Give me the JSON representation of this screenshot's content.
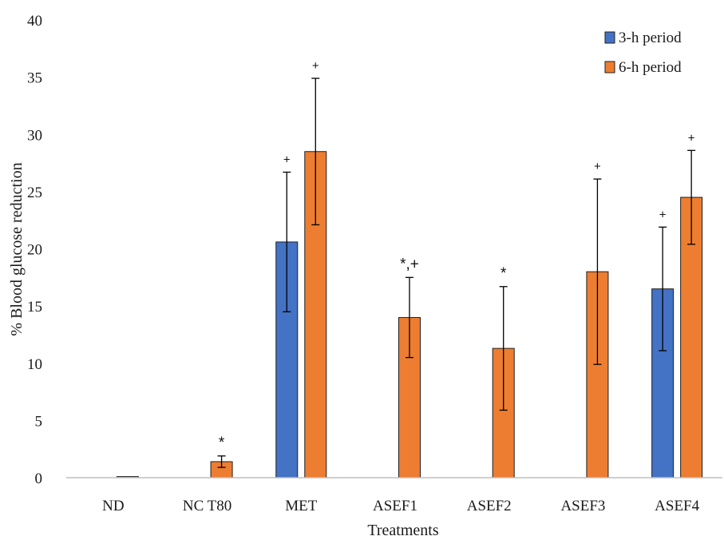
{
  "chart_data": {
    "type": "bar",
    "xlabel": "Treatments",
    "ylabel": "% Blood glucose reduction",
    "ylim": [
      0,
      40
    ],
    "yticks": [
      0,
      5,
      10,
      15,
      20,
      25,
      30,
      35,
      40
    ],
    "grid": false,
    "legend_position": "top-right",
    "categories": [
      "ND",
      "NC T80",
      "MET",
      "ASEF1",
      "ASEF2",
      "ASEF3",
      "ASEF4"
    ],
    "series": [
      {
        "name": "3-h period",
        "color": "#4472C4",
        "values": [
          0,
          0,
          20.6,
          0,
          0,
          0,
          16.5
        ],
        "errors": [
          0,
          0,
          6.1,
          0,
          0,
          0,
          5.4
        ],
        "annotations": [
          "",
          "",
          "+",
          "",
          "",
          "",
          "+"
        ]
      },
      {
        "name": "6-h period",
        "color": "#ED7D31",
        "values": [
          0.1,
          1.4,
          28.5,
          14.0,
          11.3,
          18.0,
          24.5
        ],
        "errors": [
          0,
          0.5,
          6.4,
          3.5,
          5.4,
          8.1,
          4.1
        ],
        "annotations": [
          "",
          "*",
          "+",
          "*,+",
          "*",
          "+",
          "+"
        ]
      }
    ]
  }
}
